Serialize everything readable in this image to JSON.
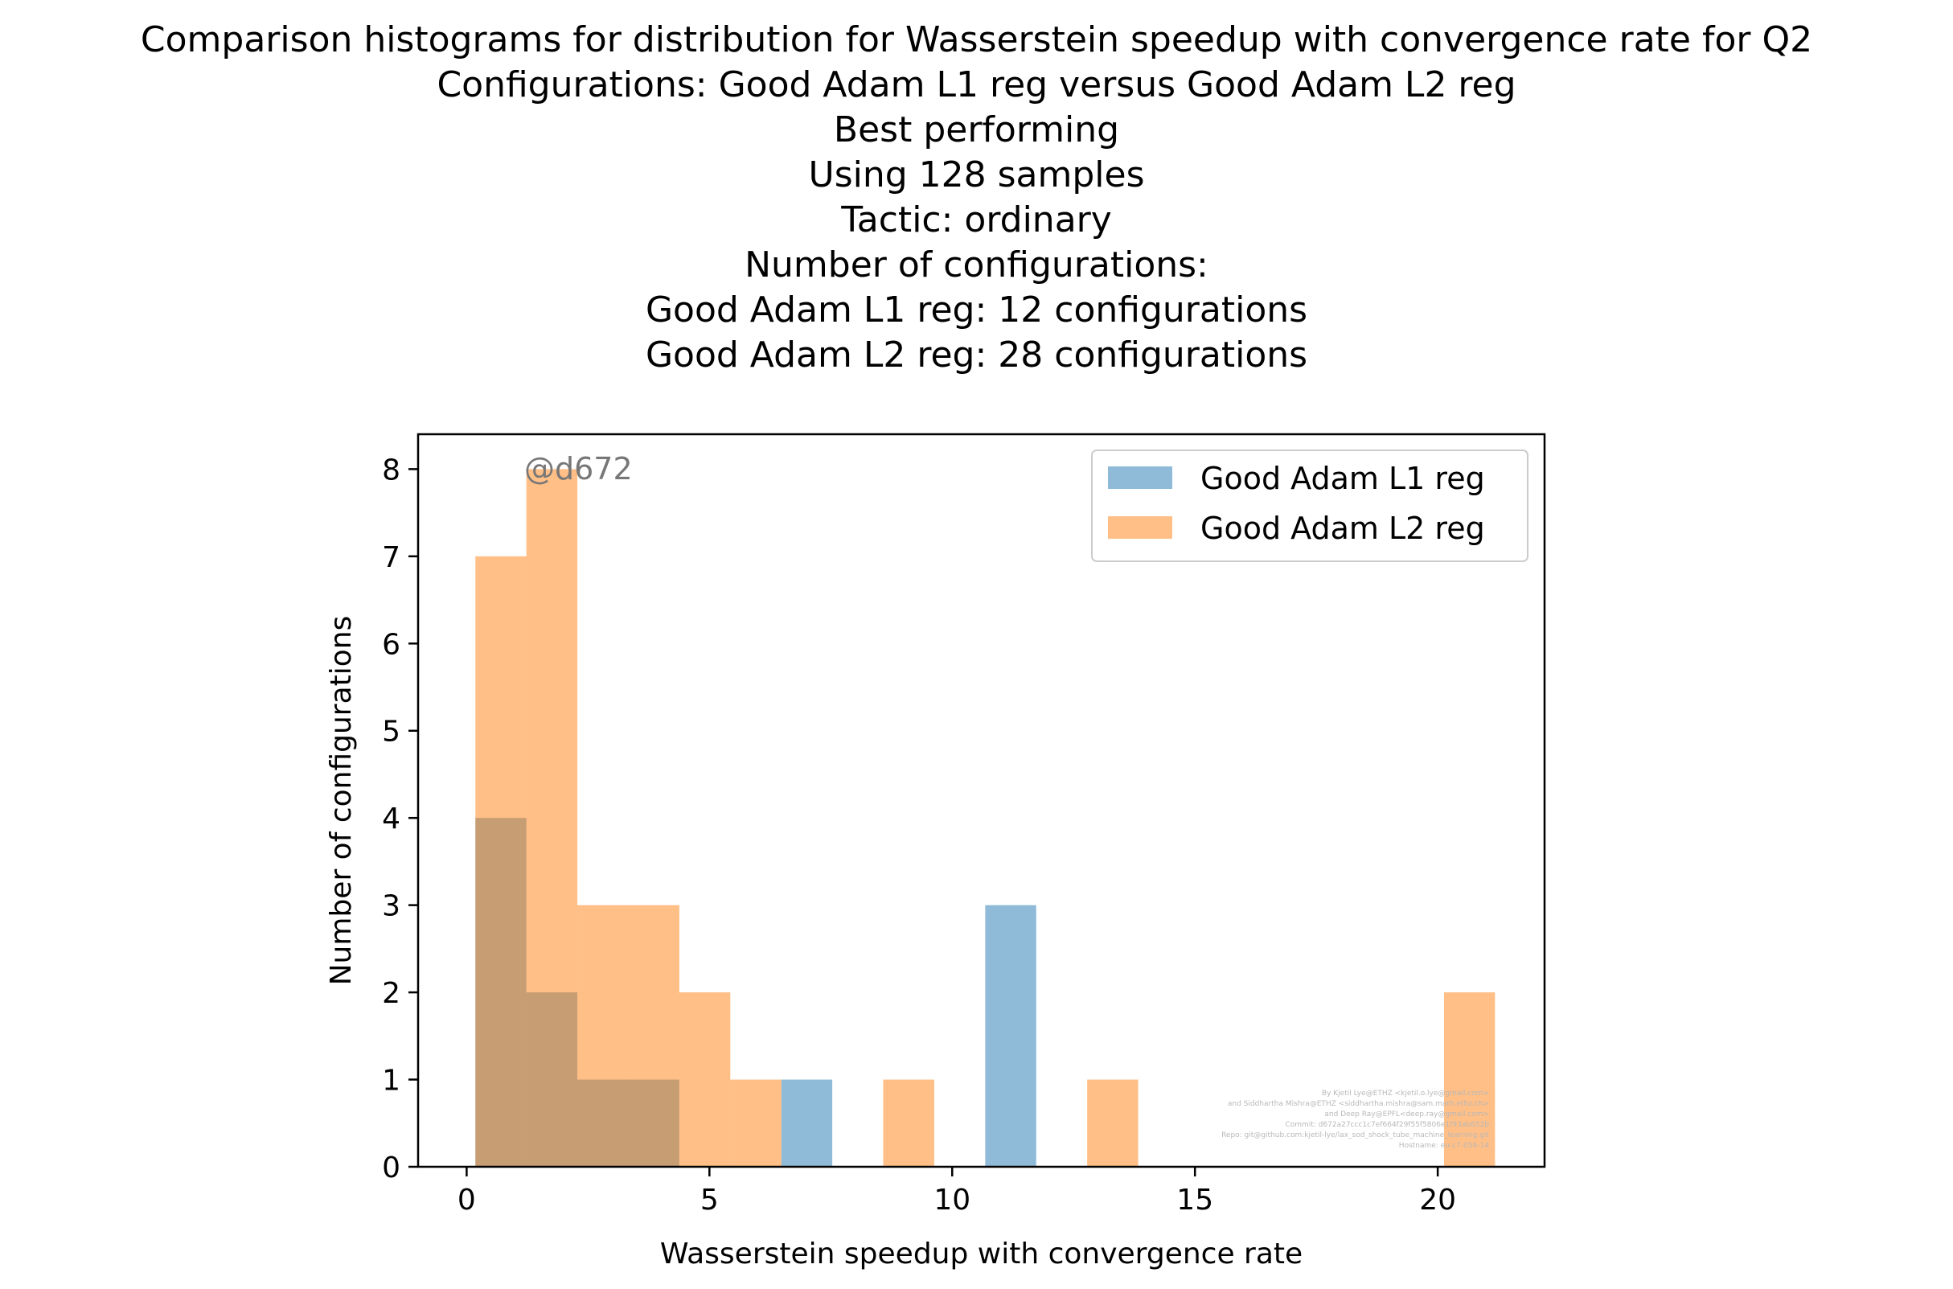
{
  "title_lines": [
    "Comparison histograms for distribution for Wasserstein speedup with convergence rate for Q2",
    "Configurations: Good Adam L1 reg versus Good Adam L2 reg",
    "Best performing",
    "Using 128 samples",
    "Tactic: ordinary",
    "Number of configurations:",
    "Good Adam L1 reg: 12 configurations",
    "Good Adam L2 reg: 28 configurations"
  ],
  "watermark": "@d672",
  "credits": [
    "By Kjetil Lye@ETHZ <kjetil.o.lye@gmail.com>",
    "and Siddhartha Mishra@ETHZ <siddhartha.mishra@sam.math.ethz.ch>",
    "and Deep Ray@EPFL<deep.ray@gmail.com>",
    "Commit: d672a27ccc1c7ef664f29f55f5806e1f93ab652b",
    "Repo: git@github.com:kjetil-lye/lax_sod_shock_tube_machine_learning.git",
    "Hostname: eu-c7-056-14"
  ],
  "colors": {
    "series1": "#1f77b4",
    "series2": "#ff7f0e",
    "bar_alpha": 0.5
  },
  "chart_data": {
    "type": "bar",
    "subtype": "overlaid histogram",
    "xlabel": "Wasserstein speedup with convergence rate",
    "ylabel": "Number of configurations",
    "xlim": [
      -1.0,
      22.2
    ],
    "ylim": [
      0,
      8.4
    ],
    "xticks": [
      0,
      5,
      10,
      15,
      20
    ],
    "yticks": [
      0,
      1,
      2,
      3,
      4,
      5,
      6,
      7,
      8
    ],
    "grid": false,
    "legend_position": "top-right",
    "bin_edges": [
      0.18,
      1.23,
      2.28,
      3.33,
      4.38,
      5.43,
      6.48,
      7.53,
      8.58,
      9.63,
      10.68,
      11.73,
      12.78,
      13.83,
      14.88,
      15.93,
      16.98,
      18.03,
      19.08,
      20.13,
      21.18
    ],
    "series": [
      {
        "name": "Good Adam L1 reg",
        "color": "#1f77b4",
        "counts": [
          4,
          2,
          1,
          1,
          0,
          0,
          1,
          0,
          0,
          0,
          3,
          0,
          0,
          0,
          0,
          0,
          0,
          0,
          0,
          0
        ]
      },
      {
        "name": "Good Adam L2 reg",
        "color": "#ff7f0e",
        "counts": [
          7,
          8,
          3,
          3,
          2,
          1,
          0,
          0,
          1,
          0,
          0,
          0,
          1,
          0,
          0,
          0,
          0,
          0,
          0,
          2
        ]
      }
    ]
  }
}
